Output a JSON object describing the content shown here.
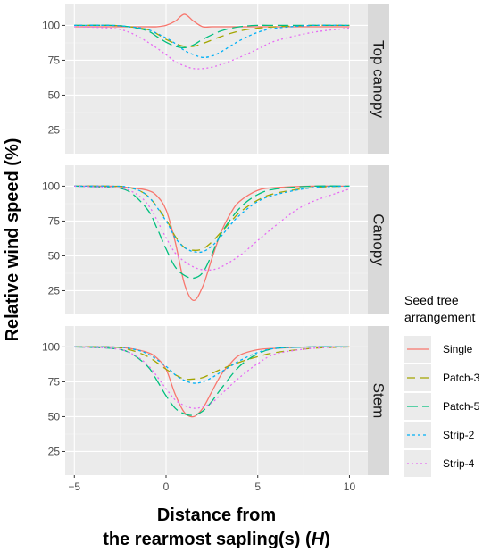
{
  "chart_data": {
    "type": "line",
    "ylabel": "Relative wind speed (%)",
    "xlabel_line1": "Distance from",
    "xlabel_line2": "the rearmost sapling(s) (",
    "xlabel_italic": "H",
    "xlabel_close": ")",
    "xlim": [
      -5.5,
      11
    ],
    "ylim": [
      8,
      115
    ],
    "x_ticks": [
      -5,
      0,
      5,
      10
    ],
    "y_ticks": [
      25,
      50,
      75,
      100
    ],
    "x_tick_labels": [
      "−5",
      "0",
      "5",
      "10"
    ],
    "y_tick_labels": [
      "25",
      "50",
      "75",
      "100"
    ],
    "legend": {
      "title_line1": "Seed tree",
      "title_line2": "arrangement",
      "position": "right"
    },
    "series_styles": [
      {
        "name": "Single",
        "color": "#F8766D",
        "dash": ""
      },
      {
        "name": "Patch-3",
        "color": "#A3A500",
        "dash": "9,6"
      },
      {
        "name": "Patch-5",
        "color": "#00BF7D",
        "dash": "12,5"
      },
      {
        "name": "Strip-2",
        "color": "#00B0F6",
        "dash": "3,3"
      },
      {
        "name": "Strip-4",
        "color": "#E76BF3",
        "dash": "2,3"
      }
    ],
    "panels": [
      {
        "label": "Top canopy",
        "series": [
          {
            "name": "Single",
            "x": [
              -5,
              -3,
              -2,
              -1,
              -0.5,
              0,
              0.5,
              1,
              1.5,
              2,
              2.5,
              3,
              4,
              6,
              8,
              10
            ],
            "y": [
              99,
              99,
              99,
              99,
              99,
              100,
              103,
              108,
              103,
              99,
              99,
              99,
              99,
              99,
              99,
              99
            ]
          },
          {
            "name": "Patch-3",
            "x": [
              -5,
              -3,
              -2,
              -1,
              -0.5,
              0,
              0.5,
              1,
              1.5,
              2,
              3,
              4,
              5,
              6,
              8,
              10
            ],
            "y": [
              100,
              100,
              99,
              97,
              94,
              90,
              87,
              85,
              85,
              87,
              92,
              96,
              98,
              99,
              100,
              100
            ]
          },
          {
            "name": "Patch-5",
            "x": [
              -5,
              -3,
              -2,
              -1,
              -0.5,
              0,
              0.5,
              1,
              1.5,
              2,
              3,
              4,
              5,
              6,
              8,
              10
            ],
            "y": [
              100,
              100,
              99,
              96,
              92,
              88,
              85,
              84,
              86,
              90,
              96,
              99,
              100,
              100,
              100,
              100
            ]
          },
          {
            "name": "Strip-2",
            "x": [
              -5,
              -3,
              -2,
              -1,
              0,
              0.5,
              1,
              1.5,
              2,
              2.5,
              3,
              4,
              5,
              6,
              8,
              10
            ],
            "y": [
              100,
              100,
              99,
              97,
              91,
              87,
              82,
              79,
              77,
              78,
              81,
              89,
              95,
              98,
              100,
              100
            ]
          },
          {
            "name": "Strip-4",
            "x": [
              -5,
              -3,
              -2,
              -1,
              0,
              0.5,
              1,
              1.5,
              2,
              2.5,
              3,
              4,
              5,
              6,
              8,
              10
            ],
            "y": [
              99,
              98,
              95,
              88,
              79,
              74,
              71,
              69,
              69,
              70,
              72,
              77,
              83,
              89,
              95,
              98
            ]
          }
        ]
      },
      {
        "label": "Canopy",
        "series": [
          {
            "name": "Single",
            "x": [
              -5,
              -3,
              -2,
              -1,
              -0.5,
              0,
              0.5,
              1,
              1.5,
              2,
              2.5,
              3,
              3.5,
              4,
              5,
              6,
              8,
              10
            ],
            "y": [
              100,
              100,
              99,
              97,
              93,
              83,
              60,
              30,
              18,
              28,
              48,
              67,
              80,
              89,
              97,
              99,
              100,
              100
            ]
          },
          {
            "name": "Patch-3",
            "x": [
              -5,
              -3,
              -2,
              -1,
              0,
              0.5,
              1,
              1.5,
              2,
              2.5,
              3,
              3.5,
              4,
              5,
              6,
              8,
              10
            ],
            "y": [
              100,
              100,
              99,
              93,
              76,
              64,
              56,
              54,
              55,
              60,
              67,
              74,
              81,
              90,
              95,
              99,
              100
            ]
          },
          {
            "name": "Patch-5",
            "x": [
              -5,
              -3,
              -2,
              -1,
              -0.5,
              0,
              0.5,
              1,
              1.5,
              2,
              2.5,
              3,
              4,
              5,
              6,
              8,
              10
            ],
            "y": [
              100,
              99,
              96,
              83,
              70,
              55,
              42,
              36,
              34,
              38,
              51,
              66,
              84,
              94,
              98,
              100,
              100
            ]
          },
          {
            "name": "Strip-2",
            "x": [
              -5,
              -3,
              -2,
              -1,
              0,
              0.5,
              1,
              1.5,
              2,
              2.5,
              3,
              3.5,
              4,
              5,
              6,
              8,
              10
            ],
            "y": [
              100,
              100,
              99,
              93,
              75,
              63,
              56,
              53,
              53,
              57,
              64,
              72,
              79,
              89,
              94,
              99,
              100
            ]
          },
          {
            "name": "Strip-4",
            "x": [
              -5,
              -3,
              -2,
              -1,
              0,
              0.5,
              1,
              1.5,
              2,
              2.5,
              3,
              4,
              5,
              6,
              7,
              8,
              10
            ],
            "y": [
              100,
              99,
              97,
              87,
              63,
              52,
              46,
              42,
              40,
              40,
              42,
              50,
              61,
              72,
              82,
              89,
              98
            ]
          }
        ]
      },
      {
        "label": "Stem",
        "series": [
          {
            "name": "Single",
            "x": [
              -5,
              -3,
              -2,
              -1,
              -0.5,
              0,
              0.5,
              1,
              1.5,
              2,
              2.5,
              3,
              3.5,
              4,
              5,
              6,
              8,
              10
            ],
            "y": [
              100,
              100,
              99,
              96,
              92,
              84,
              66,
              53,
              50,
              56,
              68,
              80,
              88,
              94,
              98,
              99,
              100,
              100
            ]
          },
          {
            "name": "Patch-3",
            "x": [
              -5,
              -3,
              -2,
              -1,
              0,
              0.5,
              1,
              1.5,
              2,
              2.5,
              3,
              4,
              5,
              6,
              8,
              10
            ],
            "y": [
              100,
              100,
              98,
              93,
              84,
              80,
              77,
              77,
              78,
              81,
              84,
              89,
              93,
              96,
              99,
              100
            ]
          },
          {
            "name": "Patch-5",
            "x": [
              -5,
              -3,
              -2,
              -1,
              -0.5,
              0,
              0.5,
              1,
              1.5,
              2,
              2.5,
              3,
              4,
              5,
              6,
              8,
              10
            ],
            "y": [
              100,
              99,
              96,
              86,
              76,
              65,
              56,
              52,
              51,
              54,
              61,
              70,
              86,
              95,
              99,
              100,
              100
            ]
          },
          {
            "name": "Strip-2",
            "x": [
              -5,
              -3,
              -2,
              -1,
              0,
              0.5,
              1,
              1.5,
              2,
              2.5,
              3,
              3.5,
              4,
              5,
              6,
              8,
              10
            ],
            "y": [
              100,
              100,
              99,
              95,
              86,
              80,
              76,
              74,
              75,
              78,
              82,
              86,
              90,
              96,
              99,
              100,
              100
            ]
          },
          {
            "name": "Strip-4",
            "x": [
              -5,
              -3,
              -2,
              -1,
              0,
              0.5,
              1,
              1.5,
              2,
              2.5,
              3,
              4,
              5,
              6,
              8,
              10
            ],
            "y": [
              100,
              99,
              96,
              87,
              70,
              62,
              58,
              56,
              57,
              60,
              66,
              78,
              88,
              95,
              99,
              100
            ]
          }
        ]
      }
    ]
  }
}
